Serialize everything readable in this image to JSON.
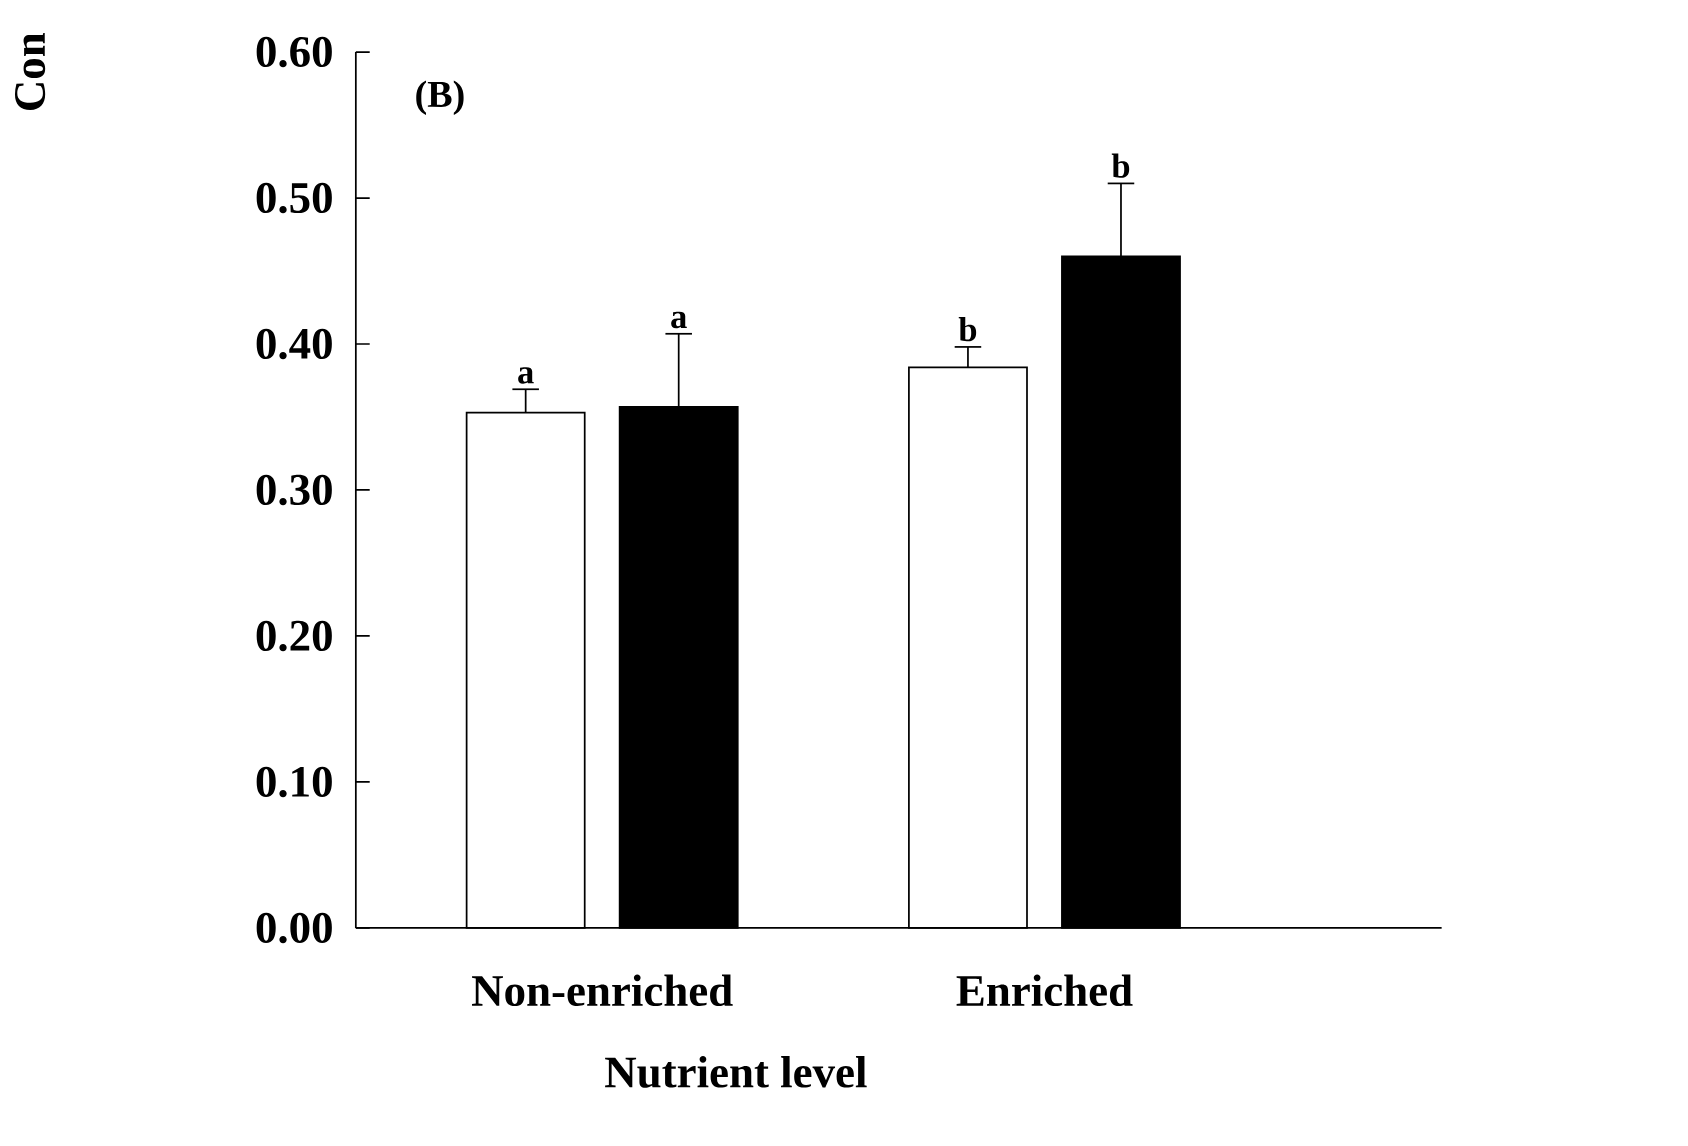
{
  "chart_data": {
    "type": "bar",
    "xlabel": "Nutrient level",
    "ylabel": "Con",
    "categories": [
      "Non-enriched",
      "Enriched"
    ],
    "series": [
      {
        "color": "#ffffff",
        "values": [
          0.353,
          0.384
        ],
        "errors": [
          [
            0.353,
            0.369
          ],
          [
            0.384,
            0.398
          ]
        ],
        "value_labels": [
          "a",
          "b"
        ]
      },
      {
        "color": "#000000",
        "values": [
          0.357,
          0.46
        ],
        "errors": [
          [
            0.357,
            0.407
          ],
          [
            0.46,
            0.51
          ]
        ],
        "value_labels": [
          "a",
          "b"
        ]
      }
    ],
    "ylim": [
      0,
      0.6
    ],
    "yticks": [
      {
        "value": 0,
        "label": "0.00"
      },
      {
        "value": 0.1,
        "label": "0.10"
      },
      {
        "value": 0.2,
        "label": "0.20"
      },
      {
        "value": 0.3,
        "label": "0.30"
      },
      {
        "value": 0.4,
        "label": "0.40"
      },
      {
        "value": 0.5,
        "label": "0.50"
      },
      {
        "value": 0.6,
        "label": "0.60"
      }
    ],
    "annotations": [
      "(B)"
    ],
    "grid": false
  }
}
